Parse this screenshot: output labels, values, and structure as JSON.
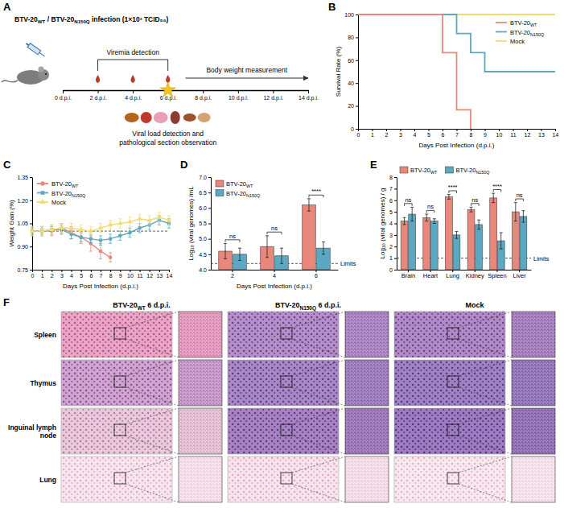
{
  "panel_letters": [
    "A",
    "B",
    "C",
    "D",
    "E",
    "F"
  ],
  "diagram": {
    "infection_label": "BTV-20WT / BTV-20N150Q infection (1×10³ TCID₅₀)",
    "viremia_label": "Viremia detection",
    "weight_label": "Body weight measurement",
    "timeline": {
      "range": [
        0,
        14
      ],
      "ticks": [
        {
          "value": 0,
          "label": "0 d.p.i."
        },
        {
          "value": 2,
          "label": "2 d.p.i."
        },
        {
          "value": 4,
          "label": "4 d.p.i."
        },
        {
          "value": 6,
          "label": "6 d.p.i."
        },
        {
          "value": 8,
          "label": "8 d.p.i."
        },
        {
          "value": 10,
          "label": "10 d.p.i."
        },
        {
          "value": 12,
          "label": "12 d.p.i."
        },
        {
          "value": 14,
          "label": "14 d.p.i."
        }
      ]
    },
    "viremia_days": [
      2,
      4,
      6
    ],
    "sampling_day": 6,
    "sampling_label_lines": [
      "Viral load detection and",
      "pathological section observation"
    ]
  },
  "chart_data": [
    {
      "type": "line",
      "x": [
        0,
        1,
        2,
        3,
        4,
        5,
        6,
        7,
        8,
        9,
        10,
        11,
        12,
        13,
        14
      ],
      "xlim": [
        0,
        14
      ],
      "xticks": [
        0,
        1,
        2,
        3,
        4,
        5,
        6,
        7,
        8,
        9,
        10,
        11,
        12,
        13,
        14
      ],
      "ylim": [
        0,
        100
      ],
      "yticks": [
        0,
        20,
        40,
        60,
        80,
        100
      ],
      "x_label": "Days Post Infection (d.p.i.)",
      "y_label": "Survival Rate (%)",
      "legend": "top-right",
      "line_style": "step",
      "series": [
        {
          "name": "BTV-20WT",
          "color": "#e8877c",
          "values": [
            100,
            100,
            100,
            100,
            100,
            100,
            66.7,
            16.7,
            0,
            null,
            null,
            null,
            null,
            null,
            null
          ]
        },
        {
          "name": "BTV-20N150Q",
          "color": "#5aa8c1",
          "values": [
            100,
            100,
            100,
            100,
            100,
            100,
            100,
            83.3,
            66.7,
            50,
            50,
            50,
            50,
            50,
            50
          ]
        },
        {
          "name": "Mock",
          "color": "#f2dc72",
          "values": [
            100,
            100,
            100,
            100,
            100,
            100,
            100,
            100,
            100,
            100,
            100,
            100,
            100,
            100,
            100
          ]
        }
      ]
    },
    {
      "type": "line",
      "x": [
        0,
        1,
        2,
        3,
        4,
        5,
        6,
        7,
        8,
        9,
        10,
        11,
        12,
        13,
        14
      ],
      "xlim": [
        0,
        14
      ],
      "xticks": [
        0,
        1,
        2,
        3,
        4,
        5,
        6,
        7,
        8,
        9,
        10,
        11,
        12,
        13,
        14
      ],
      "ylim": [
        0.75,
        1.35
      ],
      "yticks": [
        0.75,
        {
          "value": 0.9,
          "label": "0.90"
        },
        1.05,
        {
          "value": 1.2,
          "label": "1.20"
        },
        1.35
      ],
      "x_label": "Days Post Infection (d.p.i.)",
      "y_label": "Weight Gain (%)",
      "legend": "top-left",
      "baseline": 1,
      "series": [
        {
          "name": "BTV-20WT",
          "color": "#e8877c",
          "marker": "circle",
          "values": [
            1,
            1,
            1,
            1.02,
            0.99,
            0.96,
            0.92,
            0.87,
            0.83,
            null,
            null,
            null,
            null,
            null,
            null
          ],
          "errors": [
            0.02,
            0.02,
            0.03,
            0.03,
            0.04,
            0.04,
            0.05,
            0.05,
            0.03,
            null,
            null,
            null,
            null,
            null,
            null
          ]
        },
        {
          "name": "BTV-20N150Q",
          "color": "#5aa8c1",
          "marker": "square",
          "values": [
            1,
            1,
            1.01,
            1.01,
            0.98,
            0.96,
            0.95,
            0.94,
            0.95,
            0.97,
            0.99,
            1.02,
            1.04,
            1.07,
            1.05
          ],
          "errors": [
            0.03,
            0.03,
            0.03,
            0.03,
            0.03,
            0.03,
            0.03,
            0.03,
            0.03,
            0.03,
            0.03,
            0.03,
            0.03,
            0.03,
            0.03
          ]
        },
        {
          "name": "Mock",
          "color": "#f2dc72",
          "marker": "triangle",
          "values": [
            1,
            1,
            1.01,
            1.02,
            1.02,
            1.01,
            1,
            1.02,
            1.04,
            1.05,
            1.06,
            1.08,
            1.07,
            1.09,
            1.07
          ],
          "errors": [
            0.03,
            0.03,
            0.03,
            0.03,
            0.03,
            0.03,
            0.03,
            0.03,
            0.03,
            0.03,
            0.03,
            0.03,
            0.03,
            0.03,
            0.03
          ]
        }
      ]
    },
    {
      "type": "bar",
      "categories": [
        "2",
        "4",
        "6"
      ],
      "ylim": [
        4,
        7
      ],
      "yticks": [
        {
          "value": 4,
          "label": "4.0"
        },
        4.5,
        {
          "value": 5,
          "label": "5.0"
        },
        5.5,
        {
          "value": 6,
          "label": "6.0"
        },
        6.5,
        {
          "value": 7,
          "label": "7.0"
        }
      ],
      "x_label": "Days Post Infection (d.p.i.)",
      "y_label": "Log₁₀ (viral genomes) /mL",
      "legend": "top-left",
      "limit": 4.2,
      "limit_label": "Limits",
      "significance": [
        "ns",
        "ns",
        "****"
      ],
      "series": [
        {
          "name": "BTV-20WT",
          "color": "#e8877c",
          "values": [
            4.6,
            4.75,
            6.1
          ],
          "errors": [
            0.25,
            0.35,
            0.2
          ]
        },
        {
          "name": "BTV-20N150Q",
          "color": "#5aa8c1",
          "values": [
            4.5,
            4.45,
            4.7
          ],
          "errors": [
            0.2,
            0.25,
            0.2
          ]
        }
      ]
    },
    {
      "type": "bar",
      "categories": [
        "Brain",
        "Heart",
        "Lung",
        "Kidney",
        "Spleen",
        "Liver"
      ],
      "ylim": [
        0,
        8
      ],
      "yticks": [
        0,
        1,
        2,
        3,
        4,
        5,
        6,
        7,
        8
      ],
      "y_label": "Log₁₀ (viral genomes) / g",
      "legend": "top",
      "limit": 1,
      "limit_label": "Limits",
      "significance": [
        "ns",
        "ns",
        "****",
        "ns",
        "****",
        "ns"
      ],
      "series": [
        {
          "name": "BTV-20WT",
          "color": "#e8877c",
          "values": [
            4.2,
            4.5,
            6.3,
            5.2,
            6.2,
            5.0
          ],
          "errors": [
            0.3,
            0.3,
            0.2,
            0.2,
            0.4,
            0.8
          ]
        },
        {
          "name": "BTV-20N150Q",
          "color": "#5aa8c1",
          "values": [
            4.8,
            4.2,
            3.0,
            3.9,
            2.5,
            4.6
          ],
          "errors": [
            0.6,
            0.2,
            0.3,
            0.4,
            0.7,
            0.5
          ]
        }
      ]
    }
  ],
  "figure": {
    "column_headers": [
      "BTV-20WT 6 d.p.i.",
      "BTV-20N150Q 6 d.p.i.",
      "Mock"
    ],
    "row_labels": [
      "Spleen",
      "Thymus",
      "Inguinal lymph node",
      "Lung"
    ]
  }
}
